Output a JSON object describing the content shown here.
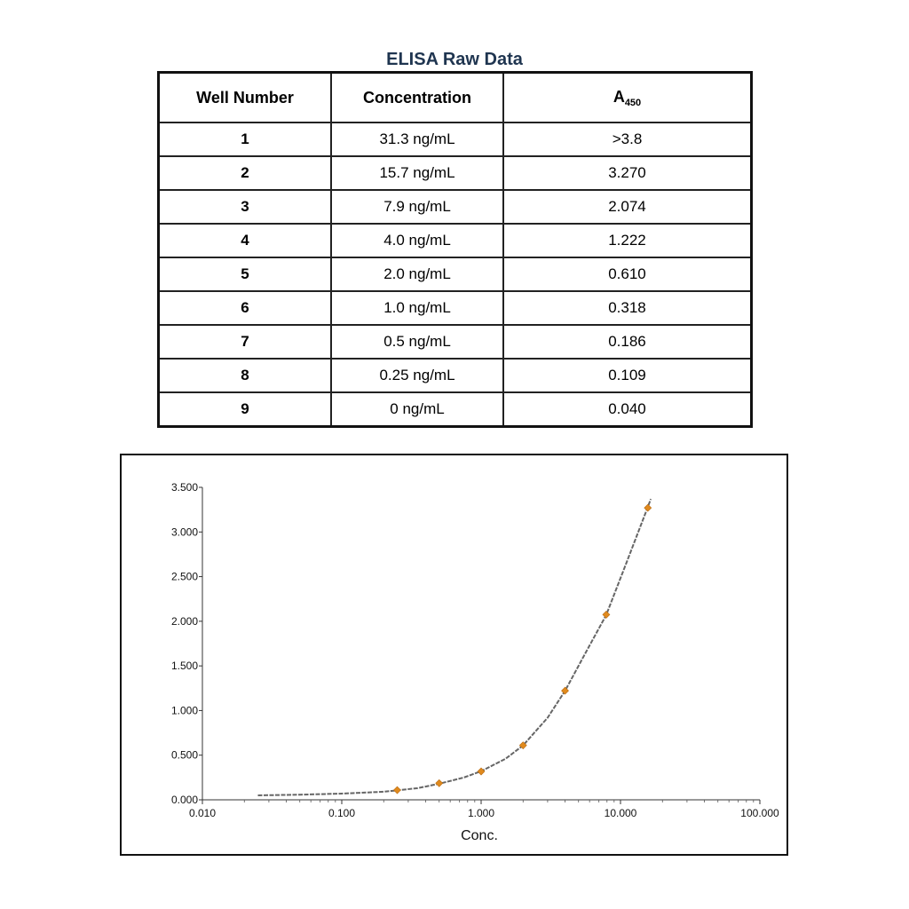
{
  "table": {
    "title": "ELISA Raw Data",
    "headers": {
      "well": "Well Number",
      "conc": "Concentration",
      "abs_main": "A",
      "abs_sub": "450"
    },
    "rows": [
      {
        "well": "1",
        "conc": "31.3 ng/mL",
        "abs": ">3.8"
      },
      {
        "well": "2",
        "conc": "15.7 ng/mL",
        "abs": "3.270"
      },
      {
        "well": "3",
        "conc": "7.9 ng/mL",
        "abs": "2.074"
      },
      {
        "well": "4",
        "conc": "4.0 ng/mL",
        "abs": "1.222"
      },
      {
        "well": "5",
        "conc": "2.0 ng/mL",
        "abs": "0.610"
      },
      {
        "well": "6",
        "conc": "1.0 ng/mL",
        "abs": "0.318"
      },
      {
        "well": "7",
        "conc": "0.5 ng/mL",
        "abs": "0.186"
      },
      {
        "well": "8",
        "conc": "0.25 ng/mL",
        "abs": "0.109"
      },
      {
        "well": "9",
        "conc": "0 ng/mL",
        "abs": "0.040"
      }
    ]
  },
  "chart_data": {
    "type": "scatter",
    "xlabel": "Conc.",
    "ylabel": "",
    "xscale": "log",
    "xlim": [
      0.01,
      100
    ],
    "ylim": [
      0,
      3.5
    ],
    "x_ticks": [
      "0.010",
      "0.100",
      "1.000",
      "10.000",
      "100.000"
    ],
    "y_ticks": [
      "0.000",
      "0.500",
      "1.000",
      "1.500",
      "2.000",
      "2.500",
      "3.000",
      "3.500"
    ],
    "grid": false,
    "series": [
      {
        "marker_color": "#e08a1e",
        "points": [
          {
            "x": 0.25,
            "y": 0.109
          },
          {
            "x": 0.5,
            "y": 0.186
          },
          {
            "x": 1.0,
            "y": 0.318
          },
          {
            "x": 2.0,
            "y": 0.61
          },
          {
            "x": 4.0,
            "y": 1.222
          },
          {
            "x": 7.9,
            "y": 2.074
          },
          {
            "x": 15.7,
            "y": 3.27
          }
        ]
      }
    ],
    "fit_curve": {
      "color": "#666666",
      "points": [
        {
          "x": 0.025,
          "y": 0.05
        },
        {
          "x": 0.05,
          "y": 0.058
        },
        {
          "x": 0.1,
          "y": 0.07
        },
        {
          "x": 0.2,
          "y": 0.09
        },
        {
          "x": 0.35,
          "y": 0.13
        },
        {
          "x": 0.5,
          "y": 0.18
        },
        {
          "x": 0.75,
          "y": 0.25
        },
        {
          "x": 1.0,
          "y": 0.32
        },
        {
          "x": 1.5,
          "y": 0.46
        },
        {
          "x": 2.0,
          "y": 0.61
        },
        {
          "x": 3.0,
          "y": 0.92
        },
        {
          "x": 4.0,
          "y": 1.22
        },
        {
          "x": 5.5,
          "y": 1.62
        },
        {
          "x": 7.9,
          "y": 2.07
        },
        {
          "x": 11,
          "y": 2.65
        },
        {
          "x": 15.7,
          "y": 3.28
        },
        {
          "x": 16.5,
          "y": 3.37
        }
      ]
    }
  }
}
